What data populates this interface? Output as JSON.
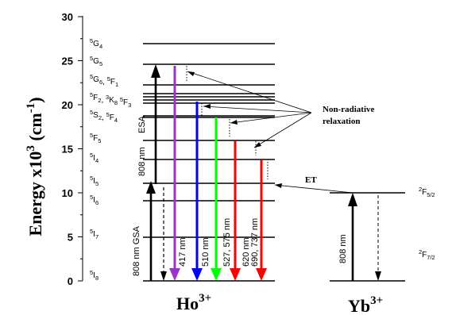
{
  "axis": {
    "title": "Energy x10",
    "title_sup": "3",
    "title_units": "(cm",
    "title_units_sup": "-1",
    "title_close": ")",
    "ticks": [
      "0",
      "5",
      "10",
      "15",
      "20",
      "25",
      "30"
    ]
  },
  "ho_levels": [
    {
      "term": "I",
      "mult": "5",
      "sub": "8"
    },
    {
      "term": "I",
      "mult": "5",
      "sub": "7"
    },
    {
      "term": "I",
      "mult": "5",
      "sub": "6"
    },
    {
      "term": "I",
      "mult": "5",
      "sub": "5"
    },
    {
      "term": "I",
      "mult": "5",
      "sub": "4"
    },
    {
      "term": "F",
      "mult": "5",
      "sub": "5"
    },
    {
      "term": "S",
      "mult": "5",
      "sub": "2",
      "term2": "F",
      "mult2": "5",
      "sub2": "4"
    },
    {
      "term": "F",
      "mult": "5",
      "sub": "2",
      "term2": "K",
      "mult2": "3",
      "sub2": "8",
      "term3": "F",
      "mult3": "5",
      "sub3": "3"
    },
    {
      "term": "G",
      "mult": "5",
      "sub": "6",
      "term2": "F",
      "mult2": "5",
      "sub2": "1"
    },
    {
      "term": "G",
      "mult": "5",
      "sub": "5"
    },
    {
      "term": "G",
      "mult": "5",
      "sub": "4"
    }
  ],
  "transitions": {
    "gsa": "808 nm GSA",
    "esa_wavelength": "808 nm",
    "esa": "ESA",
    "emissions": [
      "417 nm",
      "510 nm",
      "527, 575 nm",
      "620 nm",
      "690, 737 nm"
    ],
    "colors": [
      "#9933cc",
      "#0000ff",
      "#00ff00",
      "#ff0000",
      "#ff0000"
    ]
  },
  "annotations": {
    "nonrad_line1": "Non-radiative",
    "nonrad_line2": "relaxation",
    "et": "ET"
  },
  "yb": {
    "pump": "808 nm",
    "upper_mult": "2",
    "upper_term": "F",
    "upper_sub": "5/2",
    "lower_mult": "2",
    "lower_term": "F",
    "lower_sub": "7/2"
  },
  "ions": {
    "ho": "Ho",
    "ho_sup": "3+",
    "yb": "Yb",
    "yb_sup": "3+"
  }
}
